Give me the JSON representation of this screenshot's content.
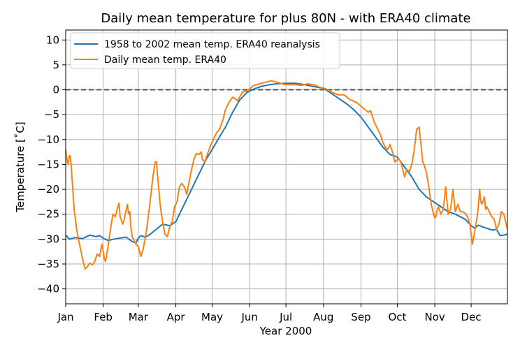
{
  "chart_data": {
    "type": "line",
    "title": "Daily mean temperature for plus 80N - with ERA40 climate",
    "xlabel": "Year 2000",
    "ylabel": "Temperature [$^\\circ$C]",
    "ylabel_display": "Temperature [˚C]",
    "xlim": [
      0,
      365
    ],
    "ylim": [
      -43,
      12
    ],
    "yticks": [
      10,
      5,
      0,
      -5,
      -10,
      -15,
      -20,
      -25,
      -30,
      -35,
      -40
    ],
    "ytick_labels": [
      "10",
      "5",
      "0",
      "−5",
      "−10",
      "−15",
      "−20",
      "−25",
      "−30",
      "−35",
      "−40"
    ],
    "month_ticks": [
      0,
      31,
      60,
      91,
      121,
      152,
      182,
      213,
      244,
      274,
      305,
      335
    ],
    "months": [
      "Jan",
      "Feb",
      "Mar",
      "Apr",
      "May",
      "Jun",
      "Jul",
      "Aug",
      "Sep",
      "Oct",
      "Nov",
      "Dec"
    ],
    "grid": true,
    "reference_line": {
      "y": 0,
      "style": "dashed",
      "color": "#555555"
    },
    "legend": {
      "position": "upper-left"
    },
    "series": [
      {
        "name": "1958 to 2002 mean temp. ERA40 reanalysis",
        "color": "#1f77b4",
        "x": [
          0,
          3,
          8,
          14,
          20,
          25,
          28,
          31,
          35,
          40,
          45,
          50,
          55,
          58,
          60,
          62,
          66,
          70,
          75,
          80,
          86,
          91,
          96,
          100,
          106,
          112,
          116,
          121,
          127,
          132,
          138,
          144,
          150,
          156,
          162,
          168,
          174,
          182,
          190,
          198,
          206,
          213,
          220,
          226,
          232,
          238,
          244,
          250,
          256,
          262,
          268,
          274,
          280,
          286,
          292,
          298,
          304,
          310,
          316,
          322,
          330,
          335,
          338,
          341,
          345,
          350,
          353,
          356,
          359,
          362,
          365
        ],
        "y": [
          -29.2,
          -30,
          -29.7,
          -29.9,
          -29.2,
          -29.5,
          -29.3,
          -29.8,
          -30.3,
          -30,
          -29.8,
          -29.6,
          -30.5,
          -30.8,
          -29.8,
          -29.3,
          -29.6,
          -29.0,
          -28.0,
          -27.0,
          -27.3,
          -26.5,
          -24.0,
          -22.0,
          -19.0,
          -16.0,
          -14.0,
          -12.0,
          -9.5,
          -7.5,
          -4.5,
          -2.0,
          -0.5,
          0.2,
          0.7,
          1.0,
          1.2,
          1.3,
          1.3,
          1.0,
          0.6,
          0.3,
          -0.8,
          -1.8,
          -2.8,
          -4.0,
          -5.5,
          -7.5,
          -9.5,
          -11.5,
          -13.0,
          -13.5,
          -15.5,
          -17.5,
          -20.0,
          -21.5,
          -22.5,
          -23.5,
          -24.5,
          -25.0,
          -26.0,
          -27.3,
          -27.8,
          -27.2,
          -27.6,
          -28.0,
          -28.2,
          -28.0,
          -29.3,
          -29.2,
          -29.0
        ]
      },
      {
        "name": "Daily mean temp. ERA40",
        "color": "#ff7f0e",
        "x": [
          0,
          1,
          2,
          3,
          4,
          5,
          7,
          9,
          11,
          14,
          16,
          18,
          20,
          22,
          24,
          26,
          28,
          30,
          31,
          32,
          33,
          35,
          37,
          39,
          41,
          43,
          44,
          45,
          46,
          47,
          48,
          50,
          51,
          52,
          53,
          54,
          55,
          58,
          60,
          62,
          64,
          66,
          68,
          70,
          72,
          74,
          75,
          76,
          78,
          80,
          82,
          84,
          86,
          88,
          90,
          92,
          94,
          96,
          98,
          100,
          102,
          104,
          105,
          106,
          108,
          110,
          112,
          113,
          115,
          117,
          120,
          123,
          125,
          127,
          130,
          132,
          135,
          138,
          140,
          142,
          146,
          150,
          155,
          160,
          165,
          170,
          175,
          180,
          185,
          190,
          195,
          200,
          205,
          210,
          215,
          220,
          225,
          230,
          235,
          240,
          245,
          250,
          252,
          255,
          258,
          260,
          262,
          264,
          266,
          268,
          270,
          272,
          275,
          277,
          280,
          282,
          284,
          286,
          288,
          290,
          292,
          294,
          295,
          296,
          298,
          300,
          302,
          304,
          305,
          306,
          307,
          308,
          310,
          312,
          314,
          316,
          318,
          320,
          322,
          324,
          326,
          328,
          330,
          332,
          334,
          335,
          336,
          338,
          340,
          341,
          342,
          343,
          344,
          346,
          347,
          348,
          350,
          352,
          354,
          356,
          358,
          360,
          362,
          364,
          365
        ],
        "y": [
          -12.0,
          -14.0,
          -15.0,
          -13.2,
          -13.5,
          -17.0,
          -24.0,
          -28.0,
          -30.5,
          -34.0,
          -36.0,
          -35.5,
          -34.8,
          -35.2,
          -34.5,
          -33.0,
          -33.5,
          -31.0,
          -32.5,
          -34.0,
          -34.5,
          -31.5,
          -28.0,
          -25.0,
          -25.5,
          -23.5,
          -22.8,
          -25.5,
          -26.2,
          -27.0,
          -26.5,
          -24.0,
          -23.0,
          -25.0,
          -24.5,
          -28.0,
          -29.5,
          -31.0,
          -31.5,
          -33.5,
          -32.0,
          -29.5,
          -26.0,
          -22.0,
          -17.5,
          -14.5,
          -14.5,
          -17.5,
          -23.0,
          -26.5,
          -29.0,
          -29.5,
          -27.5,
          -26.5,
          -23.5,
          -22.5,
          -19.5,
          -18.8,
          -19.5,
          -21.0,
          -18.5,
          -16.0,
          -15.0,
          -14.0,
          -12.8,
          -13.0,
          -12.5,
          -14.0,
          -14.5,
          -13.0,
          -11.0,
          -9.5,
          -8.5,
          -8.0,
          -6.0,
          -4.0,
          -2.5,
          -1.5,
          -1.8,
          -2.2,
          -0.5,
          -0.2,
          0.8,
          1.2,
          1.5,
          1.8,
          1.5,
          1.1,
          1.0,
          1.0,
          0.9,
          1.2,
          1.0,
          0.5,
          0.2,
          -0.5,
          -1.0,
          -1.0,
          -2.0,
          -2.5,
          -3.5,
          -4.5,
          -4.2,
          -6.5,
          -8.0,
          -9.0,
          -10.5,
          -11.5,
          -12.0,
          -11.0,
          -12.5,
          -14.5,
          -13.8,
          -14.5,
          -17.5,
          -16.0,
          -16.5,
          -15.0,
          -12.0,
          -8.0,
          -7.5,
          -12.0,
          -14.5,
          -15.0,
          -16.5,
          -19.5,
          -23.0,
          -25.0,
          -25.8,
          -25.5,
          -24.0,
          -23.5,
          -25.0,
          -24.0,
          -19.5,
          -25.0,
          -24.0,
          -20.0,
          -24.5,
          -23.0,
          -24.5,
          -24.5,
          -24.8,
          -25.5,
          -27.0,
          -29.0,
          -31.0,
          -28.5,
          -25.5,
          -23.5,
          -20.0,
          -22.5,
          -23.0,
          -21.5,
          -24.0,
          -23.5,
          -24.5,
          -25.5,
          -26.0,
          -28.0,
          -27.0,
          -24.5,
          -25.0,
          -27.0,
          -28.0
        ]
      }
    ]
  }
}
